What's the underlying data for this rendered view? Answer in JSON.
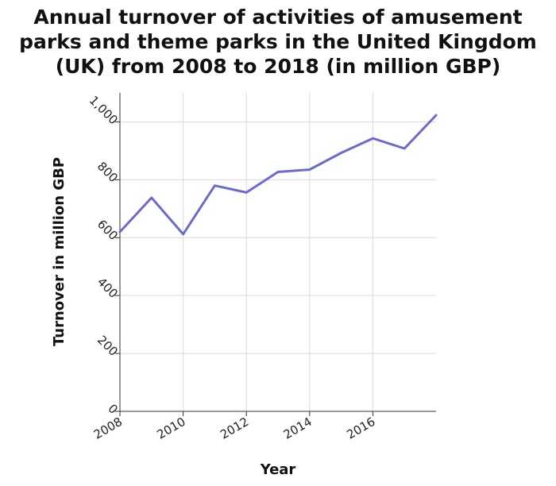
{
  "chart_data": {
    "type": "line",
    "title": "Annual turnover of activities of amusement parks and theme parks in the United Kingdom (UK) from 2008 to 2018 (in million GBP)",
    "title_lines": [
      "Annual turnover of activities of amusement",
      "parks and theme parks in the United Kingdom",
      "(UK) from 2008 to 2018 (in million GBP)"
    ],
    "xlabel": "Year",
    "ylabel": "Turnover in million GBP",
    "x": [
      2008,
      2009,
      2010,
      2011,
      2012,
      2013,
      2014,
      2015,
      2016,
      2017,
      2018
    ],
    "series": [
      {
        "values": [
          620,
          738,
          612,
          780,
          756,
          827,
          835,
          893,
          943,
          908,
          1023
        ]
      }
    ],
    "xlim": [
      2008,
      2018
    ],
    "ylim": [
      0,
      1000
    ],
    "x_ticks": [
      "2008",
      "2010",
      "2012",
      "2014",
      "2016"
    ],
    "y_ticks": [
      "0",
      "200",
      "400",
      "600",
      "800",
      "1,000"
    ],
    "grid": true,
    "line_color": "#6b6bcf"
  }
}
